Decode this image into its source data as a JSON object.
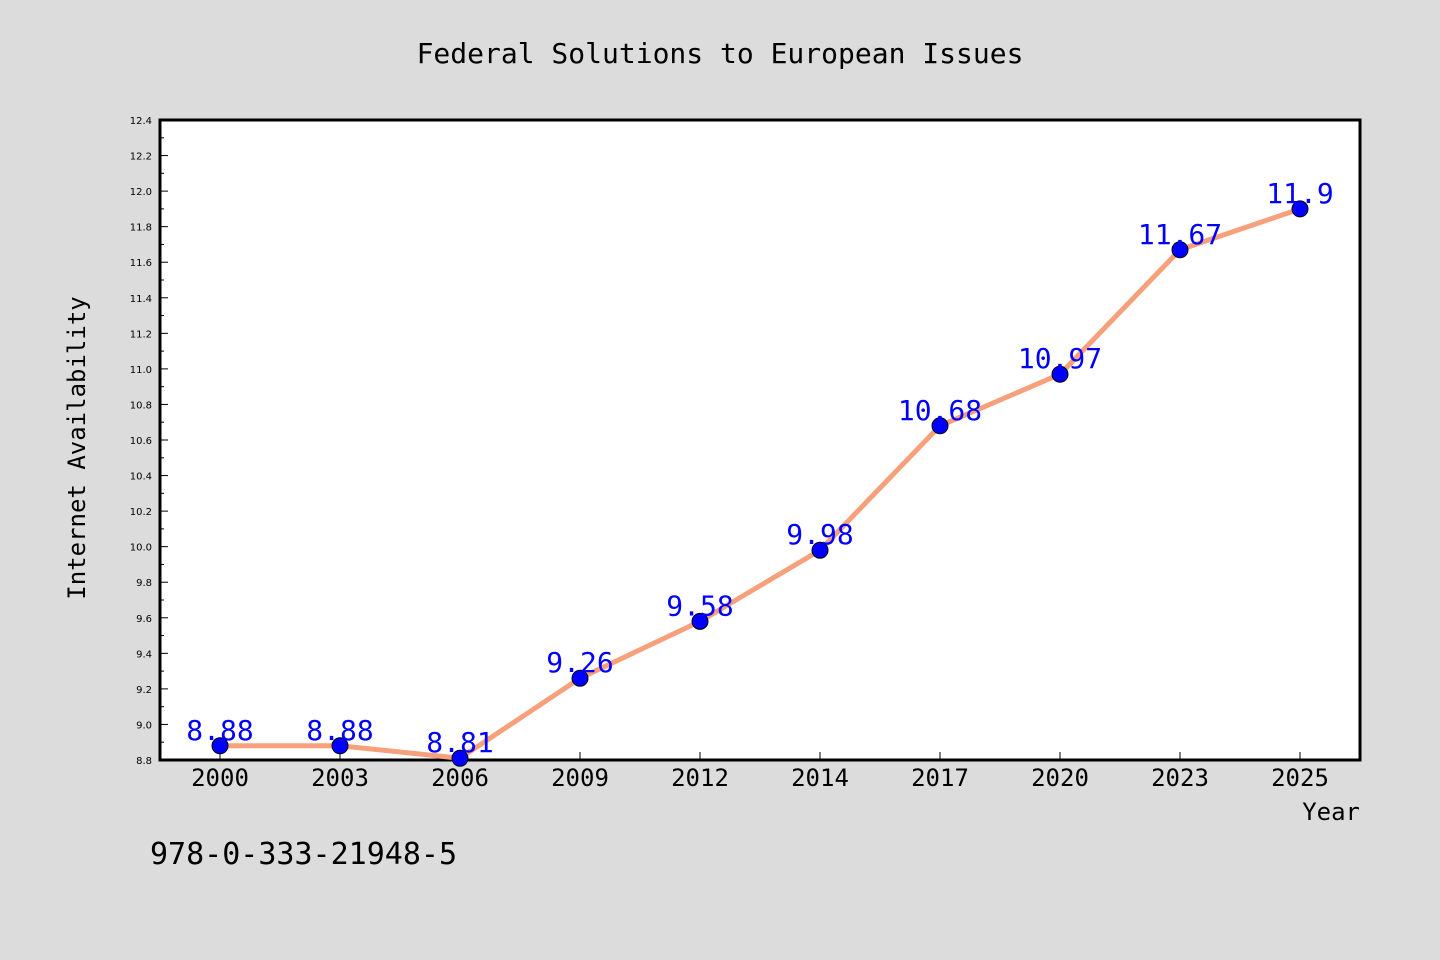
{
  "chart_data": {
    "type": "line",
    "title": "Federal Solutions to European Issues",
    "xlabel": "Year",
    "ylabel": "Internet Availability",
    "categories": [
      "2000",
      "2003",
      "2006",
      "2009",
      "2012",
      "2014",
      "2017",
      "2020",
      "2023",
      "2025"
    ],
    "values": [
      8.88,
      8.88,
      8.81,
      9.26,
      9.58,
      9.98,
      10.68,
      10.97,
      11.67,
      11.9
    ],
    "data_labels": [
      "8.88",
      "8.88",
      "8.81",
      "9.26",
      "9.58",
      "9.98",
      "10.68",
      "10.97",
      "11.67",
      "11.9"
    ],
    "ylim": [
      8.8,
      12.4
    ],
    "yticks": [
      "8.8",
      "9.0",
      "9.2",
      "9.4",
      "9.6",
      "9.8",
      "10.0",
      "10.2",
      "10.4",
      "10.6",
      "10.8",
      "11.0",
      "11.2",
      "11.4",
      "11.6",
      "11.8",
      "12.0",
      "12.2",
      "12.4"
    ],
    "grid": false,
    "annotation": "978-0-333-21948-5",
    "colors": {
      "background": "#dcdcdc",
      "plot_background": "#ffffff",
      "line": "#f7a07c",
      "marker": "#0000ff",
      "data_label": "#0000ff"
    }
  }
}
